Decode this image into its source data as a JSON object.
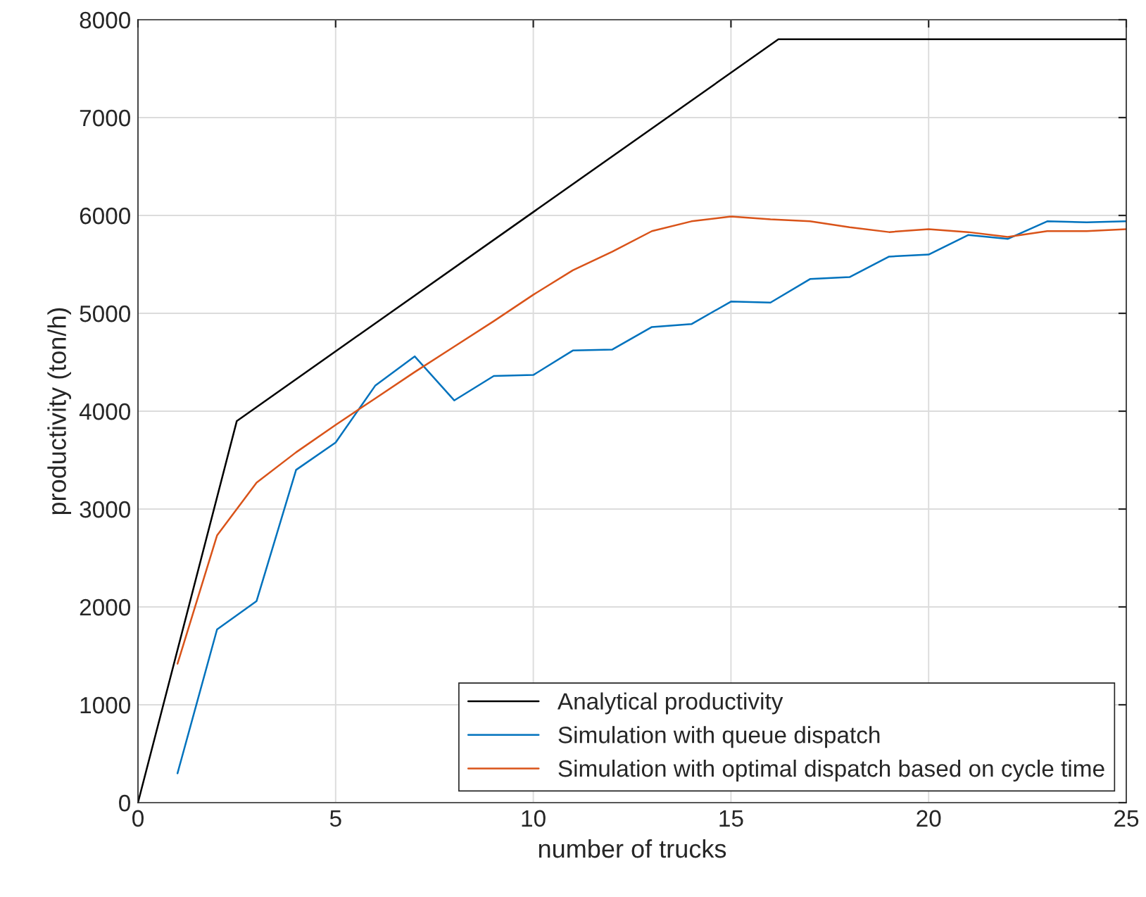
{
  "chart_data": {
    "type": "line",
    "xlabel": "number of trucks",
    "ylabel": "productivity (ton/h)",
    "xlim": [
      0,
      25
    ],
    "xticks": [
      0,
      5,
      10,
      15,
      20,
      25
    ],
    "ylim": [
      0,
      8000
    ],
    "yticks": [
      0,
      1000,
      2000,
      3000,
      4000,
      5000,
      6000,
      7000,
      8000
    ],
    "grid": true,
    "legend": "bottom right",
    "marker": "none",
    "line_style": "solid",
    "series": [
      {
        "name": "Analytical productivity",
        "color": "#000000",
        "x": [
          0,
          2.5,
          16.2,
          25
        ],
        "values": [
          0,
          3900,
          7800,
          7800
        ]
      },
      {
        "name": "Simulation with queue dispatch",
        "color": "#0072bd",
        "x": [
          1,
          2,
          3,
          4,
          5,
          6,
          7,
          8,
          9,
          10,
          11,
          12,
          13,
          14,
          15,
          16,
          17,
          18,
          19,
          20,
          21,
          22,
          23,
          24,
          25
        ],
        "values": [
          300,
          1770,
          2060,
          3400,
          3680,
          4260,
          4560,
          4110,
          4360,
          4370,
          4620,
          4630,
          4860,
          4890,
          5120,
          5110,
          5350,
          5370,
          5580,
          5600,
          5800,
          5760,
          5940,
          5930,
          5940
        ]
      },
      {
        "name": "Simulation with optimal dispatch based on cycle time",
        "color": "#d95319",
        "x": [
          1,
          2,
          3,
          4,
          5,
          6,
          7,
          8,
          9,
          10,
          11,
          12,
          13,
          14,
          15,
          16,
          17,
          18,
          19,
          20,
          21,
          22,
          23,
          24,
          25
        ],
        "values": [
          1420,
          2730,
          3270,
          3580,
          3860,
          4130,
          4400,
          4660,
          4920,
          5190,
          5440,
          5630,
          5840,
          5940,
          5990,
          5960,
          5940,
          5880,
          5830,
          5860,
          5830,
          5780,
          5840,
          5840,
          5860
        ]
      }
    ]
  }
}
